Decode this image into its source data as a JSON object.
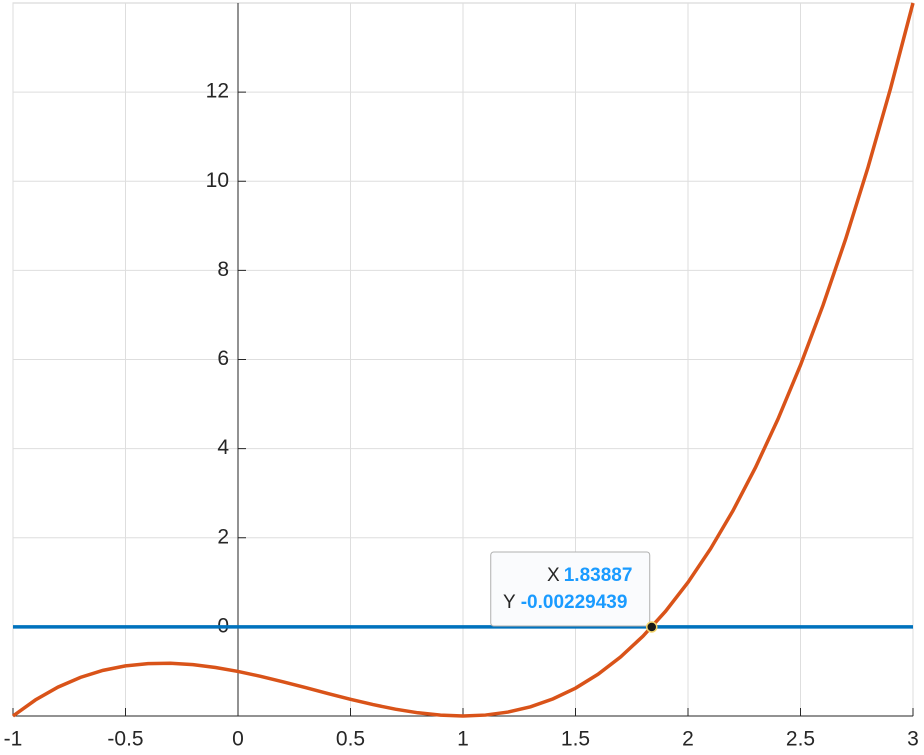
{
  "chart_data": {
    "type": "line",
    "x": [
      -1,
      -0.9,
      -0.8,
      -0.7,
      -0.6,
      -0.5,
      -0.4,
      -0.3,
      -0.2,
      -0.1,
      0,
      0.1,
      0.2,
      0.3,
      0.4,
      0.5,
      0.6,
      0.7,
      0.8,
      0.9,
      1,
      1.1,
      1.2,
      1.3,
      1.4,
      1.5,
      1.6,
      1.7,
      1.8,
      1.9,
      2,
      2.1,
      2.2,
      2.3,
      2.4,
      2.5,
      2.6,
      2.7,
      2.8,
      2.9,
      3
    ],
    "series": [
      {
        "color": "#d95319",
        "values": [
          -2,
          -1.639,
          -1.352,
          -1.133,
          -0.976,
          -0.875,
          -0.824,
          -0.817,
          -0.848,
          -0.911,
          -1,
          -1.109,
          -1.232,
          -1.363,
          -1.496,
          -1.625,
          -1.744,
          -1.847,
          -1.928,
          -1.981,
          -2,
          -1.979,
          -1.912,
          -1.793,
          -1.616,
          -1.375,
          -1.064,
          -0.677,
          -0.208,
          0.349,
          1,
          1.751,
          2.608,
          3.577,
          4.664,
          5.875,
          7.216,
          8.693,
          10.312,
          12.079,
          14
        ]
      },
      {
        "color": "#0072bd",
        "values": [
          0,
          0,
          0,
          0,
          0,
          0,
          0,
          0,
          0,
          0,
          0,
          0,
          0,
          0,
          0,
          0,
          0,
          0,
          0,
          0,
          0,
          0,
          0,
          0,
          0,
          0,
          0,
          0,
          0,
          0,
          0,
          0,
          0,
          0,
          0,
          0,
          0,
          0,
          0,
          0,
          0
        ]
      }
    ],
    "xlim": [
      -1,
      3
    ],
    "ylim": [
      -2,
      14
    ],
    "xticks": [
      -1,
      -0.5,
      0,
      0.5,
      1,
      1.5,
      2,
      2.5,
      3
    ],
    "yticks": [
      0,
      2,
      4,
      6,
      8,
      10,
      12
    ],
    "grid": true,
    "datatip": {
      "x_label": "X",
      "x": 1.83887,
      "y_label": "Y",
      "y": -0.00229439
    }
  }
}
